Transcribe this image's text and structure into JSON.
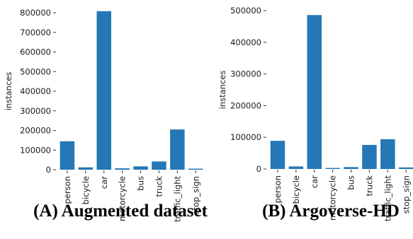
{
  "colors": {
    "bar": "#2578b5",
    "text": "#1a1a1a",
    "background": "#ffffff"
  },
  "chart_data": [
    {
      "type": "bar",
      "title": "",
      "caption": "(A) Augmented dataset",
      "xlabel": "",
      "ylabel": "instances",
      "categories": [
        "person",
        "bicycle",
        "car",
        "motorcycle",
        "bus",
        "truck",
        "traffic_light",
        "stop_sign"
      ],
      "values": [
        145000,
        12000,
        808000,
        7000,
        17000,
        42000,
        205000,
        3000
      ],
      "ylim": [
        0,
        840000
      ],
      "yticks": [
        0,
        100000,
        200000,
        300000,
        400000,
        500000,
        600000,
        700000,
        800000
      ],
      "grid": false,
      "legend": "none"
    },
    {
      "type": "bar",
      "title": "",
      "caption": "(B) Argoverse-HD",
      "xlabel": "",
      "ylabel": "instances",
      "categories": [
        "person",
        "bicycle",
        "car",
        "motorcycle",
        "bus",
        "truck",
        "traffic_light",
        "stop_sign"
      ],
      "values": [
        89000,
        8000,
        486000,
        3000,
        6000,
        76000,
        94000,
        5000
      ],
      "ylim": [
        0,
        500000
      ],
      "yticks": [
        0,
        100000,
        200000,
        300000,
        400000,
        500000
      ],
      "grid": false,
      "legend": "none"
    }
  ]
}
